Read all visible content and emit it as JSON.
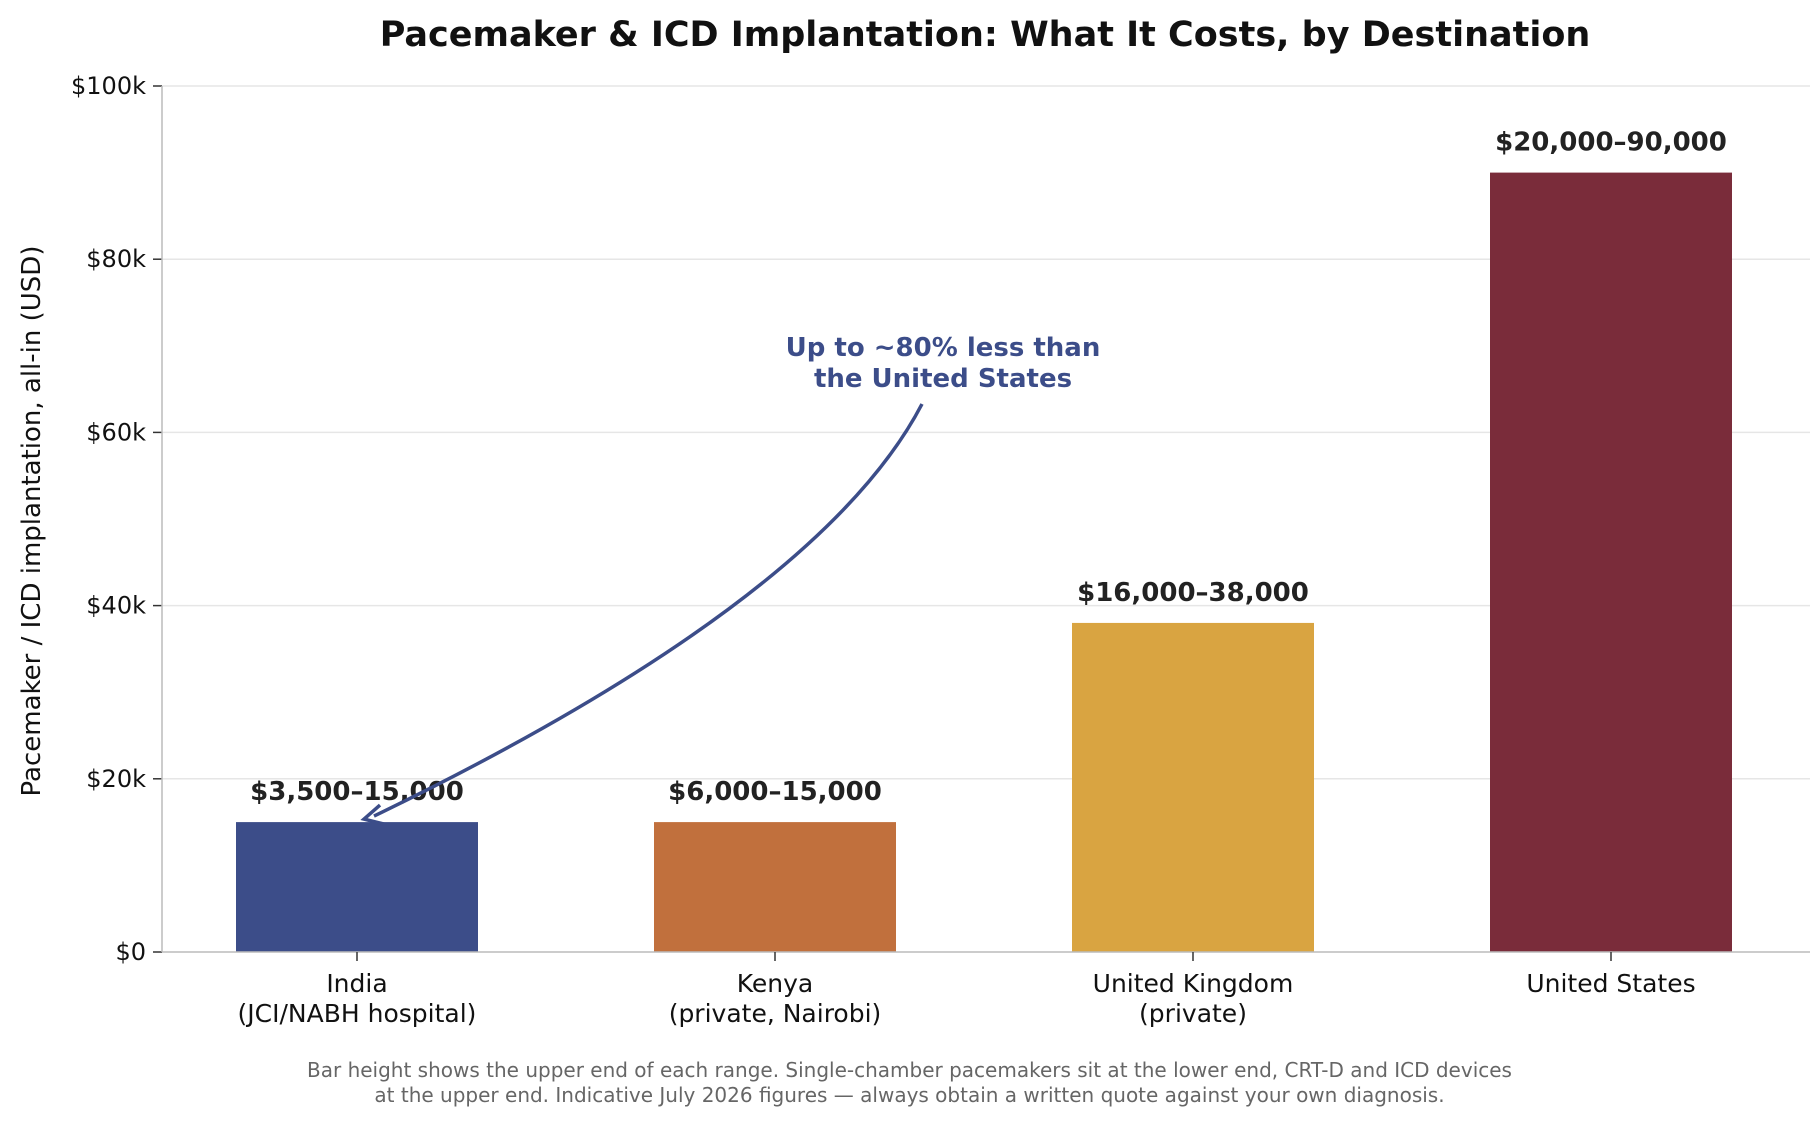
{
  "chart_data": {
    "type": "bar",
    "title": "Pacemaker & ICD Implantation: What It Costs, by Destination",
    "ylabel": "Pacemaker / ICD implantation, all-in (USD)",
    "xlabel": "",
    "ylim": [
      0,
      100000
    ],
    "yticks": [
      0,
      20000,
      40000,
      60000,
      80000,
      100000
    ],
    "ytick_labels": [
      "$0",
      "$20k",
      "$40k",
      "$60k",
      "$80k",
      "$100k"
    ],
    "grid": "horizontal",
    "categories": [
      [
        "India",
        "(JCI/NABH hospital)"
      ],
      [
        "Kenya",
        "(private, Nairobi)"
      ],
      [
        "United Kingdom",
        "(private)"
      ],
      [
        "United States"
      ]
    ],
    "values": [
      15000,
      15000,
      38000,
      90000
    ],
    "data_labels": [
      "$3,500–15,000",
      "$6,000–15,000",
      "$16,000–38,000",
      "$20,000–90,000"
    ],
    "colors": [
      "#3c4d89",
      "#c1703d",
      "#d9a441",
      "#7a2c3a"
    ],
    "annotation": {
      "text": [
        "Up to ~80% less than",
        "the United States"
      ],
      "color": "#3c4d89",
      "points_to_category": 0
    }
  },
  "footnote": [
    "Bar height shows the upper end of each range. Single-chamber pacemakers sit at the lower end, CRT-D and ICD devices",
    "at the upper end. Indicative July 2026 figures — always obtain a written quote against your own diagnosis."
  ]
}
